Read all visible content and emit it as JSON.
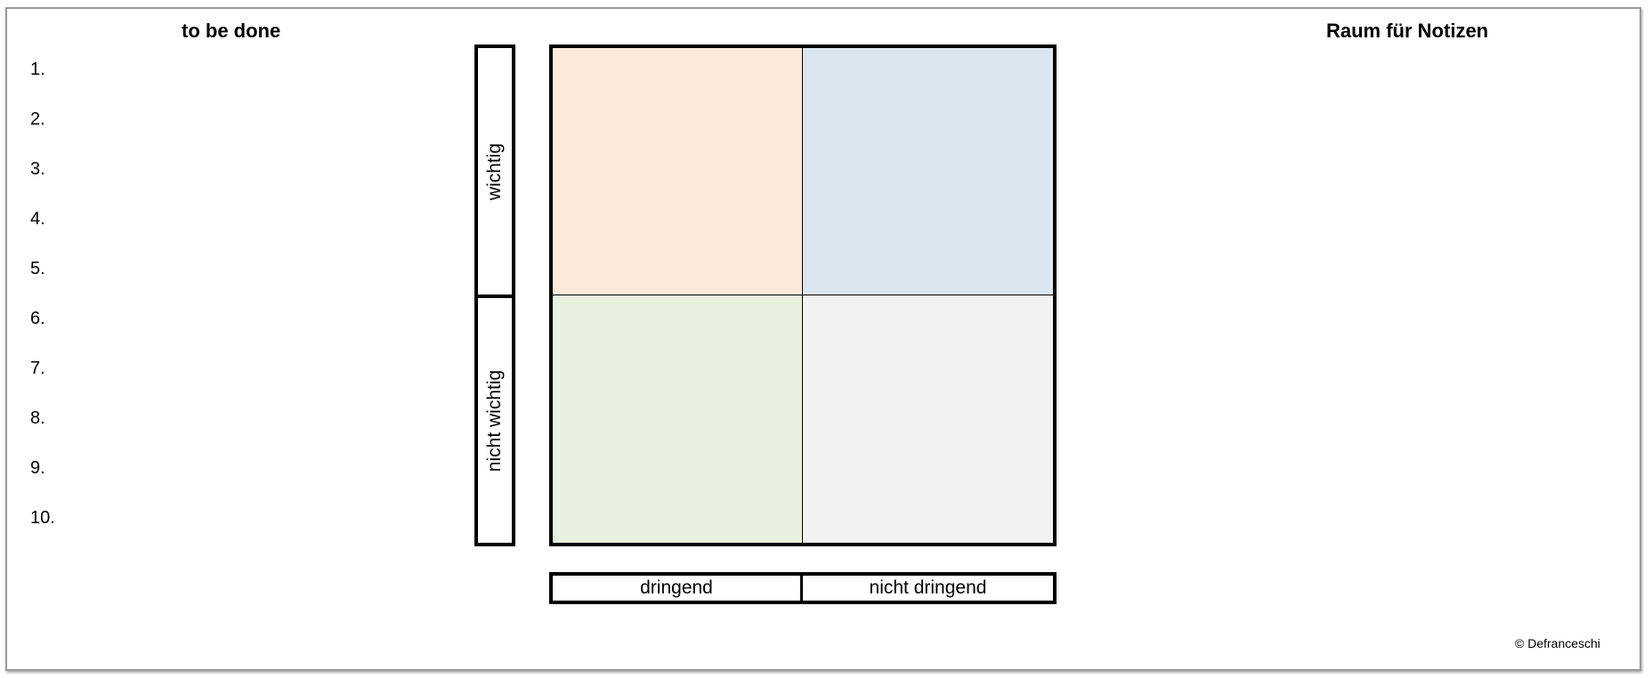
{
  "todo": {
    "title": "to be done",
    "items": [
      "1.",
      "2.",
      "3.",
      "4.",
      "5.",
      "6.",
      "7.",
      "8.",
      "9.",
      "10."
    ]
  },
  "notes": {
    "title": "Raum für Notizen"
  },
  "matrix": {
    "importance_labels": {
      "important": "wichtig",
      "not_important": "nicht wichtig"
    },
    "urgency_labels": {
      "urgent": "dringend",
      "not_urgent": "nicht dringend"
    },
    "quadrant_colors": {
      "urgent_important": "#fbe9dc",
      "not_urgent_important": "#dce6ef",
      "urgent_not_important": "#e9f0df",
      "not_urgent_not_important": "#f2f2f2"
    }
  },
  "footer": {
    "copyright": "© Defranceschi"
  }
}
